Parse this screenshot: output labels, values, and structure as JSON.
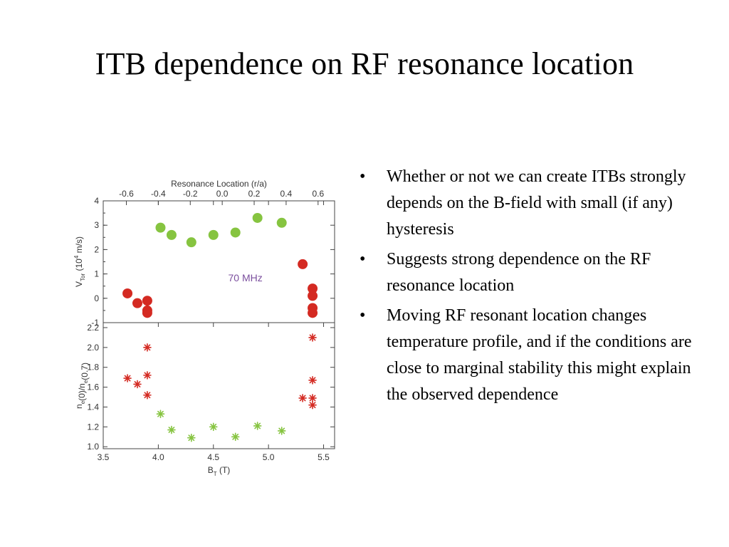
{
  "slide": {
    "title": "ITB dependence on RF resonance location",
    "bullets": [
      "Whether or not we can create ITBs strongly depends on the B-field with small (if any) hysteresis",
      "Suggests strong dependence on the RF resonance location",
      "Moving RF resonant location changes temperature profile, and if the conditions are close to marginal stability this might explain the observed dependence"
    ]
  },
  "colors": {
    "accel": "#86c440",
    "red": "#d42a22",
    "annotation": "#7b4f9e",
    "axis": "#444444"
  },
  "chart_data": [
    {
      "type": "scatter",
      "panel": "top",
      "xlabel": "",
      "ylabel_main": "V",
      "ylabel_sub": "Tor",
      "ylabel_unit_pre": " (10",
      "ylabel_unit_sup": "4",
      "ylabel_unit_post": " m/s)",
      "xlim": [
        3.5,
        5.6
      ],
      "ylim": [
        -1,
        4
      ],
      "yticks": [
        -1,
        0,
        1,
        2,
        3,
        4
      ],
      "top_axis": {
        "label": "Resonance Location (r/a)",
        "ticks": [
          {
            "label": "-0.6",
            "bt": 3.71
          },
          {
            "label": "-0.4",
            "bt": 4.0
          },
          {
            "label": "-0.2",
            "bt": 4.29
          },
          {
            "label": "0.0",
            "bt": 4.58
          },
          {
            "label": "0.2",
            "bt": 4.87
          },
          {
            "label": "0.4",
            "bt": 5.16
          },
          {
            "label": "0.6",
            "bt": 5.45
          }
        ]
      },
      "annotation": "70 MHz",
      "series": [
        {
          "color": "#86c440",
          "x": [
            4.02,
            4.12,
            4.3,
            4.5,
            4.7,
            4.9,
            5.12
          ],
          "y": [
            2.9,
            2.6,
            2.3,
            2.6,
            2.7,
            3.3,
            3.1
          ]
        },
        {
          "color": "#d42a22",
          "x": [
            3.72,
            3.81,
            3.9,
            3.9,
            3.9,
            5.31,
            5.4,
            5.4,
            5.4,
            5.4
          ],
          "y": [
            0.2,
            -0.2,
            -0.1,
            -0.5,
            -0.6,
            1.4,
            0.4,
            0.1,
            -0.4,
            -0.6
          ]
        }
      ]
    },
    {
      "type": "scatter",
      "panel": "bottom",
      "xlabel_main": "B",
      "xlabel_sub": "T",
      "xlabel_unit": " (T)",
      "ylabel_text": "n",
      "ylabel_parts": [
        {
          "t": "n",
          "sub": "e"
        },
        {
          "t": "(0)/n",
          "sub": "e"
        },
        {
          "t": "(0.7)",
          "sub": ""
        }
      ],
      "xlim": [
        3.5,
        5.6
      ],
      "ylim": [
        0.98,
        2.25
      ],
      "xticks": [
        "3.5",
        "4.0",
        "4.5",
        "5.0",
        "5.5"
      ],
      "xtick_values": [
        3.5,
        4.0,
        4.5,
        5.0,
        5.5
      ],
      "yticks": [
        "1.0",
        "1.2",
        "1.4",
        "1.6",
        "1.8",
        "2.0",
        "2.2"
      ],
      "ytick_values": [
        1.0,
        1.2,
        1.4,
        1.6,
        1.8,
        2.0,
        2.2
      ],
      "series": [
        {
          "color": "#86c440",
          "x": [
            4.02,
            4.12,
            4.3,
            4.5,
            4.7,
            4.9,
            5.12
          ],
          "y": [
            1.33,
            1.17,
            1.09,
            1.2,
            1.1,
            1.21,
            1.16
          ]
        },
        {
          "color": "#d42a22",
          "x": [
            3.72,
            3.81,
            3.9,
            3.9,
            3.9,
            5.31,
            5.4,
            5.4,
            5.4,
            5.4
          ],
          "y": [
            1.69,
            1.63,
            2.0,
            1.72,
            1.52,
            1.49,
            2.1,
            1.67,
            1.49,
            1.42
          ]
        }
      ]
    }
  ]
}
